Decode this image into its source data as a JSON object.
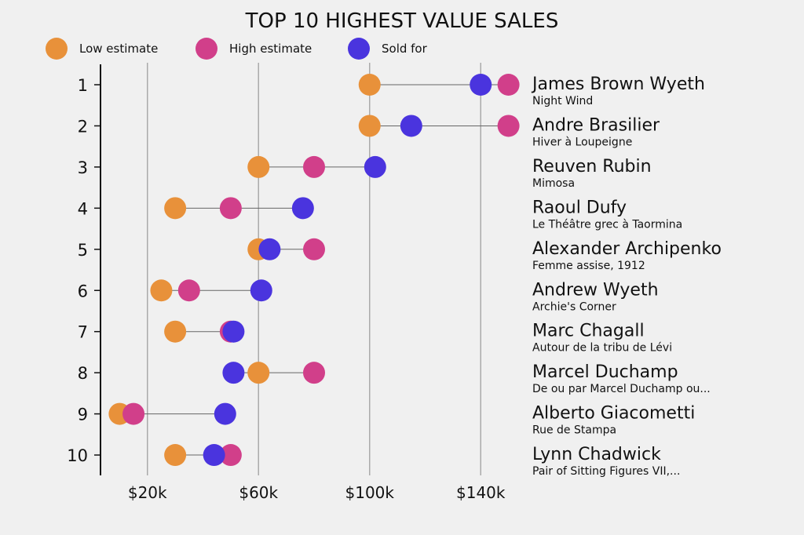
{
  "chart_data": {
    "type": "scatter",
    "subtype": "dumbbell",
    "title": "TOP 10 HIGHEST VALUE SALES",
    "xlabel": "",
    "ylabel": "",
    "xlim": [
      3,
      150
    ],
    "x_ticks": [
      20,
      60,
      100,
      140
    ],
    "x_tick_labels": [
      "$20k",
      "$60k",
      "$100k",
      "$140k"
    ],
    "grid": "vertical",
    "legend_position": "top",
    "series": [
      {
        "key": "low",
        "name": "Low estimate",
        "color": "#E8913A"
      },
      {
        "key": "high",
        "name": "High estimate",
        "color": "#D13F8A"
      },
      {
        "key": "sold",
        "name": "Sold for",
        "color": "#4A34DE"
      }
    ],
    "rows": [
      {
        "rank": "1",
        "artist": "James Brown Wyeth",
        "work": "Night Wind",
        "low": 100,
        "high": 150,
        "sold": 140
      },
      {
        "rank": "2",
        "artist": "Andre Brasilier",
        "work": "Hiver à Loupeigne",
        "low": 100,
        "high": 150,
        "sold": 115
      },
      {
        "rank": "3",
        "artist": "Reuven Rubin",
        "work": "Mimosa",
        "low": 60,
        "high": 80,
        "sold": 102
      },
      {
        "rank": "4",
        "artist": "Raoul Dufy",
        "work": "Le Théâtre grec à Taormina",
        "low": 30,
        "high": 50,
        "sold": 76
      },
      {
        "rank": "5",
        "artist": "Alexander Archipenko",
        "work": "Femme assise, 1912",
        "low": 60,
        "high": 80,
        "sold": 64
      },
      {
        "rank": "6",
        "artist": "Andrew Wyeth",
        "work": "Archie's Corner",
        "low": 25,
        "high": 35,
        "sold": 61
      },
      {
        "rank": "7",
        "artist": "Marc Chagall",
        "work": "Autour de la tribu de Lévi",
        "low": 30,
        "high": 50,
        "sold": 51
      },
      {
        "rank": "8",
        "artist": "Marcel Duchamp",
        "work": "De ou par Marcel Duchamp ou...",
        "low": 60,
        "high": 80,
        "sold": 51
      },
      {
        "rank": "9",
        "artist": "Alberto Giacometti",
        "work": "Rue de Stampa",
        "low": 10,
        "high": 15,
        "sold": 48
      },
      {
        "rank": "10",
        "artist": "Lynn Chadwick",
        "work": "Pair of Sitting Figures VII,...",
        "low": 30,
        "high": 50,
        "sold": 44
      }
    ]
  }
}
